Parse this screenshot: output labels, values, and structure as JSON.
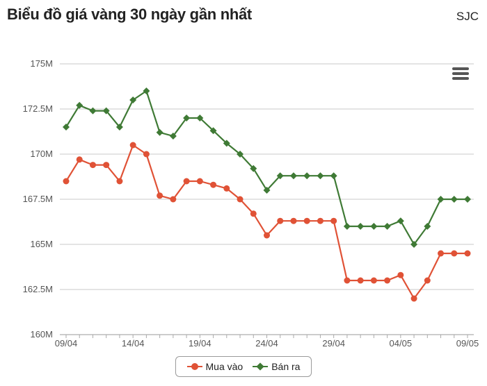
{
  "header": {
    "title": "Biểu đồ giá vàng 30 ngày gần nhất",
    "brand": "SJC"
  },
  "toolbar": {
    "menu_icon": "hamburger-menu-icon"
  },
  "chart_data": {
    "type": "line",
    "title": "Biểu đồ giá vàng 30 ngày gần nhất",
    "ylim": [
      160,
      175
    ],
    "yticks": [
      160,
      162.5,
      165,
      167.5,
      170,
      172.5,
      175
    ],
    "ytick_labels": [
      "160M",
      "162.5M",
      "165M",
      "167.5M",
      "170M",
      "172.5M",
      "175M"
    ],
    "xtick_labels": [
      "09/04",
      "14/04",
      "19/04",
      "24/04",
      "29/04",
      "04/05",
      "09/05"
    ],
    "xtick_index": [
      0,
      5,
      10,
      15,
      20,
      25,
      30
    ],
    "grid": true,
    "legend_position": "bottom-center",
    "series": [
      {
        "name": "Mua vào",
        "color": "#e05236",
        "marker": "circle",
        "values": [
          168.5,
          169.7,
          169.4,
          169.4,
          168.5,
          170.5,
          170.0,
          167.7,
          167.5,
          168.5,
          168.5,
          168.3,
          168.1,
          167.5,
          166.7,
          165.5,
          166.3,
          166.3,
          166.3,
          166.3,
          166.3,
          163.0,
          163.0,
          163.0,
          163.0,
          163.3,
          162.0,
          163.0,
          164.5,
          164.5,
          164.5
        ]
      },
      {
        "name": "Bán ra",
        "color": "#3f7a35",
        "marker": "diamond",
        "values": [
          171.5,
          172.7,
          172.4,
          172.4,
          171.5,
          173.0,
          173.5,
          171.2,
          171.0,
          172.0,
          172.0,
          171.3,
          170.6,
          170.0,
          169.2,
          168.0,
          168.8,
          168.8,
          168.8,
          168.8,
          168.8,
          166.0,
          166.0,
          166.0,
          166.0,
          166.3,
          165.0,
          166.0,
          167.5,
          167.5,
          167.5
        ]
      }
    ]
  }
}
